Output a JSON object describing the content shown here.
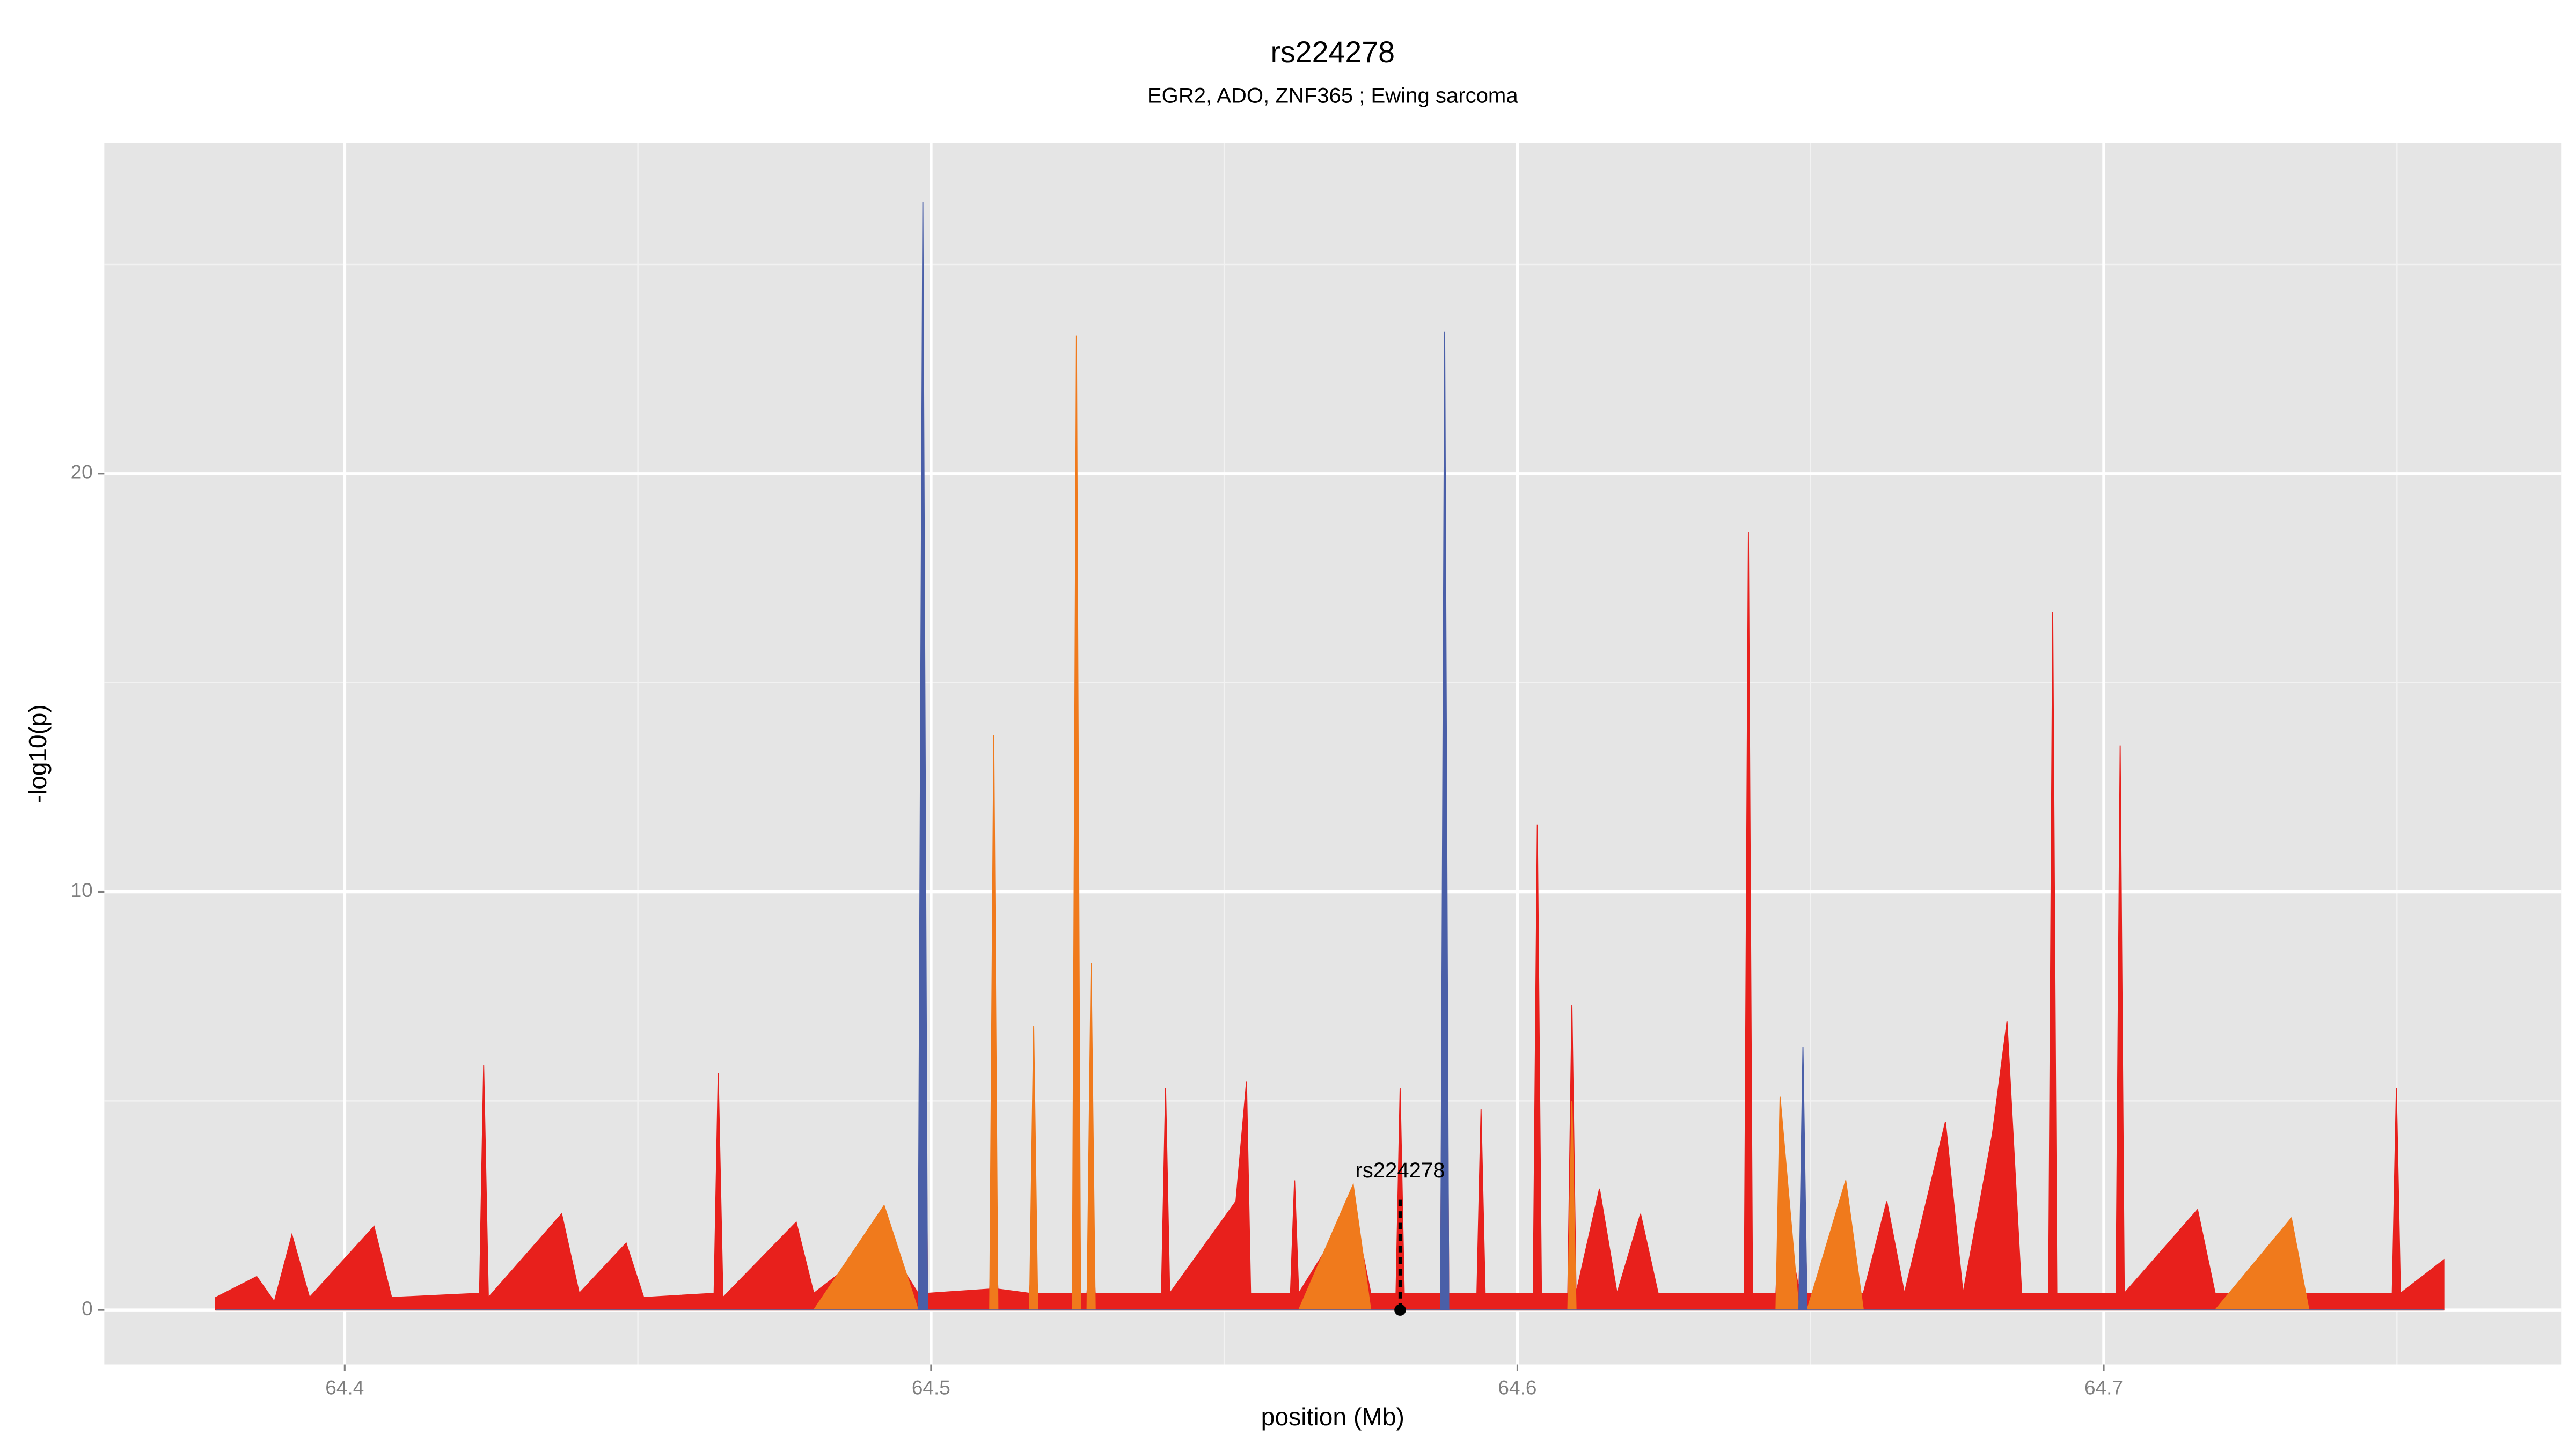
{
  "chart_data": {
    "type": "area",
    "title": "rs224278",
    "subtitle": "EGR2, ADO, ZNF365 ; Ewing sarcoma",
    "x_label": "position (Mb)",
    "y_label": "-log10(p)",
    "xlim": [
      64.359,
      64.778
    ],
    "ylim": [
      -1.3,
      27.9
    ],
    "xticks": [
      64.4,
      64.5,
      64.6,
      64.7
    ],
    "yticks": [
      0,
      10,
      20
    ],
    "x_minor_grid": [
      64.45,
      64.55,
      64.65,
      64.75
    ],
    "y_minor_grid": [
      5,
      15,
      25
    ],
    "grid": true,
    "x": [
      64.378,
      64.385,
      64.388,
      64.391,
      64.394,
      64.405,
      64.408,
      64.423,
      64.4237,
      64.4245,
      64.437,
      64.44,
      64.448,
      64.451,
      64.463,
      64.4637,
      64.4645,
      64.477,
      64.48,
      64.492,
      64.4978,
      64.4986,
      64.4994,
      64.51,
      64.5107,
      64.5114,
      64.5168,
      64.5175,
      64.5182,
      64.5241,
      64.5248,
      64.5255,
      64.5266,
      64.5273,
      64.528,
      64.5393,
      64.54,
      64.5407,
      64.552,
      64.5538,
      64.5545,
      64.5613,
      64.562,
      64.5627,
      64.572,
      64.575,
      64.5793,
      64.58,
      64.5807,
      64.5869,
      64.5876,
      64.5883,
      64.5931,
      64.5938,
      64.5945,
      64.6027,
      64.6034,
      64.6041,
      64.6086,
      64.6093,
      64.61,
      64.614,
      64.617,
      64.621,
      64.624,
      64.6387,
      64.6394,
      64.6401,
      64.6441,
      64.6448,
      64.648,
      64.6487,
      64.6494,
      64.656,
      64.659,
      64.663,
      64.666,
      64.673,
      64.676,
      64.681,
      64.6835,
      64.686,
      64.6906,
      64.6913,
      64.692,
      64.7021,
      64.7028,
      64.7035,
      64.716,
      64.719,
      64.732,
      64.735,
      64.7492,
      64.7499,
      64.7506,
      64.758
    ],
    "series": [
      {
        "color": "#e8201c",
        "values": [
          0.3,
          0.8,
          0.2,
          1.8,
          0.3,
          2.0,
          0.3,
          0.4,
          5.85,
          0.3,
          2.3,
          0.4,
          1.6,
          0.3,
          0.4,
          5.66,
          0.3,
          2.1,
          0.4,
          1.7,
          0.4,
          18,
          0.4,
          0.5,
          3,
          0.5,
          0.4,
          2,
          0.4,
          0.4,
          12,
          0.4,
          0.4,
          2,
          0.4,
          0.4,
          5.3,
          0.4,
          2.6,
          5.46,
          0.4,
          0.4,
          3.1,
          0.4,
          2.5,
          0.4,
          0.4,
          5.3,
          0.4,
          0.4,
          18,
          0.4,
          0.4,
          4.8,
          0.4,
          0.4,
          11.6,
          0.4,
          0.4,
          7.3,
          0.4,
          2.9,
          0.4,
          2.3,
          0.4,
          0.4,
          18.6,
          0.4,
          0.4,
          3,
          0.5,
          4,
          0.4,
          0.4,
          0.4,
          2.6,
          0.4,
          4.5,
          0.4,
          4.2,
          6.9,
          0.4,
          0.4,
          16.7,
          0.4,
          0.4,
          13.5,
          0.4,
          2.4,
          0.4,
          0.4,
          0.4,
          0.4,
          5.3,
          0.4,
          1.2
        ]
      },
      {
        "color": "#f07a1c",
        "values": [
          0,
          0,
          0,
          0,
          0,
          0,
          0,
          0,
          0,
          0,
          0,
          0,
          0,
          0,
          0,
          0,
          0,
          0,
          0,
          2.5,
          0,
          0,
          0,
          0,
          13.75,
          0,
          0,
          6.8,
          0,
          0,
          23.3,
          0,
          0,
          8.3,
          0,
          0,
          0,
          0,
          0,
          0,
          0,
          0,
          0,
          0,
          3.0,
          0,
          0,
          0,
          0,
          0,
          0,
          0,
          0,
          0,
          0,
          0,
          0,
          0,
          0,
          5,
          0,
          0,
          0,
          0,
          0,
          0,
          0,
          0,
          0,
          5.1,
          0,
          0,
          0,
          3.1,
          0,
          0,
          0,
          0,
          0,
          0,
          0,
          0,
          0,
          0,
          0,
          0,
          0,
          0,
          0,
          0,
          2.2,
          0,
          0,
          0,
          0,
          0
        ]
      },
      {
        "color": "#4a5fa8",
        "values": [
          0,
          0,
          0,
          0,
          0,
          0,
          0,
          0,
          0,
          0,
          0,
          0,
          0,
          0,
          0,
          0,
          0,
          0,
          0,
          0,
          0,
          26.5,
          0,
          0,
          0,
          0,
          0,
          0,
          0,
          0,
          0,
          0,
          0,
          0,
          0,
          0,
          0,
          0,
          0,
          0,
          0,
          0,
          0,
          0,
          0,
          0,
          0,
          0,
          0,
          0,
          23.4,
          0,
          0,
          0,
          0,
          0,
          0,
          0,
          0,
          0,
          0,
          0,
          0,
          0,
          0,
          0,
          0,
          0,
          0,
          0,
          0,
          6.3,
          0,
          0,
          0,
          0,
          0,
          0,
          0,
          0,
          0,
          0,
          0,
          0,
          0,
          0,
          0,
          0,
          0,
          0,
          0,
          0,
          0,
          0,
          0,
          0
        ]
      }
    ],
    "annotation": {
      "text": "rs224278",
      "x": 64.58,
      "y": 0
    }
  }
}
